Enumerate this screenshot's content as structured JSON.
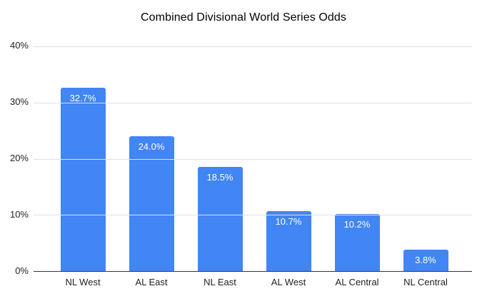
{
  "title": "Combined Divisional World Series Odds",
  "colors": {
    "bar": "#4285f4",
    "bar_value_text": "#ffffff",
    "gridline": "#e0e0e0",
    "axis_line": "#333333",
    "axis_text": "#212121",
    "title_text": "#000000",
    "background": "#ffffff"
  },
  "chart_data": {
    "type": "bar",
    "title": "Combined Divisional World Series Odds",
    "categories": [
      "NL West",
      "AL East",
      "NL East",
      "AL West",
      "AL Central",
      "NL Central"
    ],
    "values": [
      32.7,
      24.0,
      18.5,
      10.7,
      10.2,
      3.8
    ],
    "value_labels": [
      "32.7%",
      "24.0%",
      "18.5%",
      "10.7%",
      "10.2%",
      "3.8%"
    ],
    "xlabel": "",
    "ylabel": "",
    "ylim": [
      0,
      40
    ],
    "yticks": [
      0,
      10,
      20,
      30,
      40
    ],
    "ytick_labels": [
      "0%",
      "10%",
      "20%",
      "30%",
      "40%"
    ],
    "grid": true,
    "legend": "none",
    "value_labels_position": "inside-top"
  }
}
